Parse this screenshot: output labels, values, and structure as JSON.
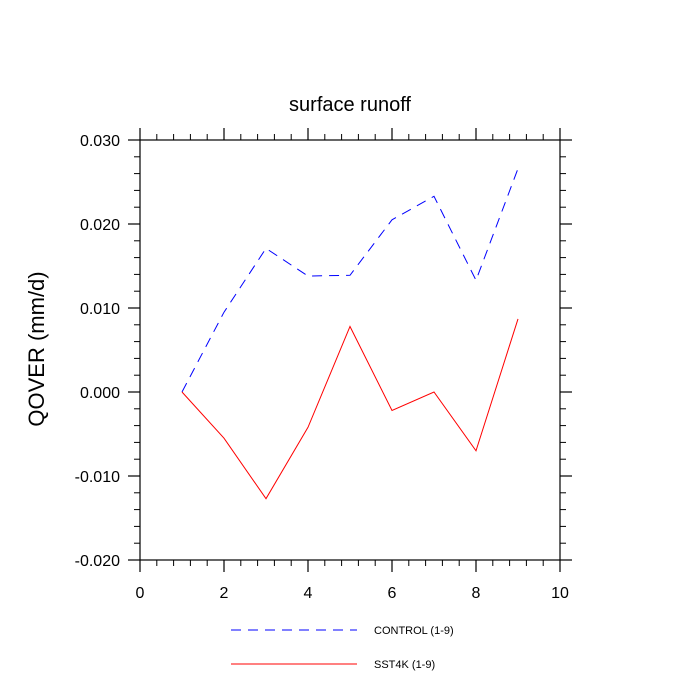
{
  "chart_data": {
    "type": "line",
    "title": "surface runoff",
    "ylabel": "QOVER  (mm/d)",
    "xlabel": "",
    "xlim": [
      0,
      10
    ],
    "ylim": [
      -0.02,
      0.03
    ],
    "x_ticks": [
      0,
      2,
      4,
      6,
      8,
      10
    ],
    "x_tick_labels": [
      "0",
      "2",
      "4",
      "6",
      "8",
      "10"
    ],
    "y_ticks": [
      -0.02,
      -0.01,
      0.0,
      0.01,
      0.02,
      0.03
    ],
    "y_tick_labels": [
      "-0.020",
      "-0.010",
      "0.000",
      "0.010",
      "0.020",
      "0.030"
    ],
    "x": [
      1,
      2,
      3,
      4,
      5,
      6,
      7,
      8,
      9
    ],
    "series": [
      {
        "name": "CONTROL (1-9)",
        "color": "#0000ff",
        "style": "dashed",
        "values": [
          0.0,
          0.0095,
          0.0171,
          0.0138,
          0.0139,
          0.0205,
          0.0233,
          0.0133,
          0.0266
        ]
      },
      {
        "name": "SST4K (1-9)",
        "color": "#ff0000",
        "style": "solid",
        "values": [
          0.0,
          -0.0055,
          -0.0127,
          -0.0042,
          0.0078,
          -0.0022,
          0.0,
          -0.007,
          0.0087
        ]
      }
    ],
    "grid": false,
    "legend_position": "bottom"
  }
}
